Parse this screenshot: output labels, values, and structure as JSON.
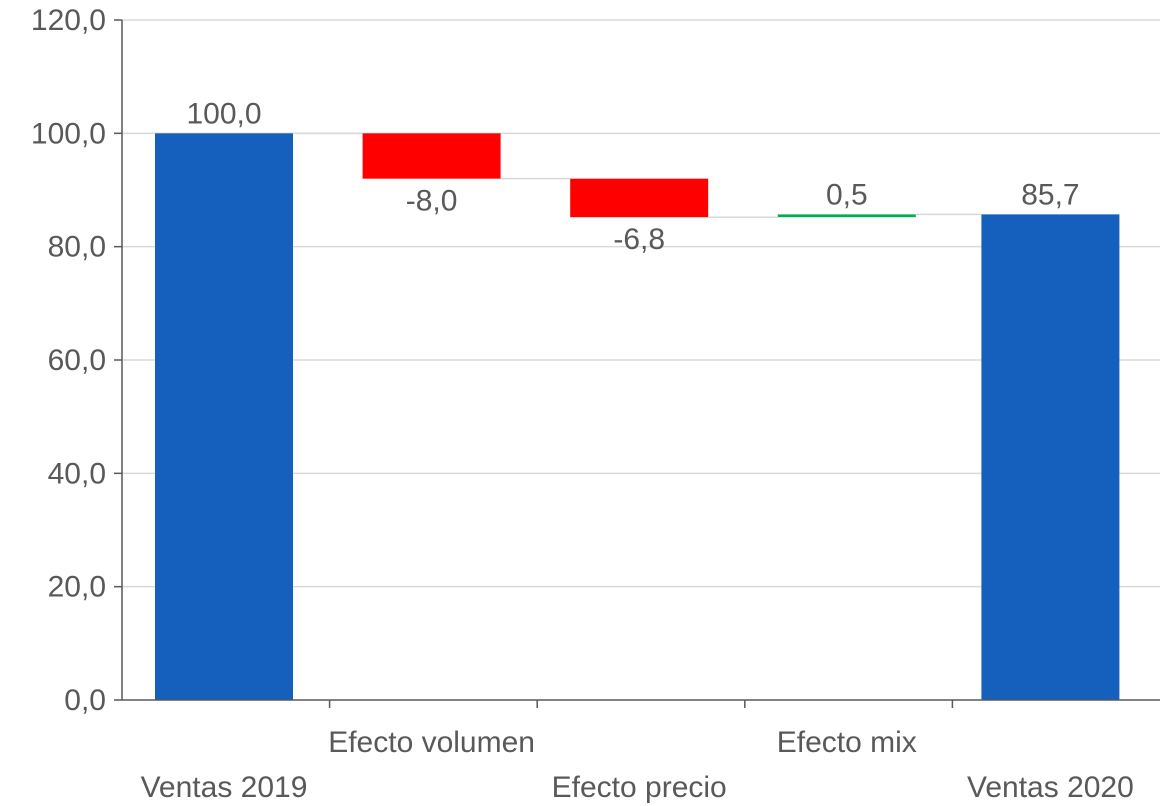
{
  "chart_data": {
    "type": "waterfall",
    "categories": [
      "Ventas 2019",
      "Efecto volumen",
      "Efecto precio",
      "Efecto mix",
      "Ventas 2020"
    ],
    "values": [
      100.0,
      -8.0,
      -6.8,
      0.5,
      85.7
    ],
    "kinds": [
      "total",
      "delta",
      "delta",
      "delta",
      "total"
    ],
    "data_labels": [
      "100,0",
      "-8,0",
      "-6,8",
      "0,5",
      "85,7"
    ],
    "y_ticks": [
      "0,0",
      "20,0",
      "40,0",
      "60,0",
      "80,0",
      "100,0",
      "120,0"
    ],
    "ylim": [
      0,
      120
    ],
    "grid": true,
    "legend": "none",
    "colors": {
      "total": "#1560BD",
      "decrease": "#FF0000",
      "increase": "#00B050",
      "grid": "#D9D9D9",
      "axis": "#595959",
      "connector": "#D9D9D9"
    }
  }
}
